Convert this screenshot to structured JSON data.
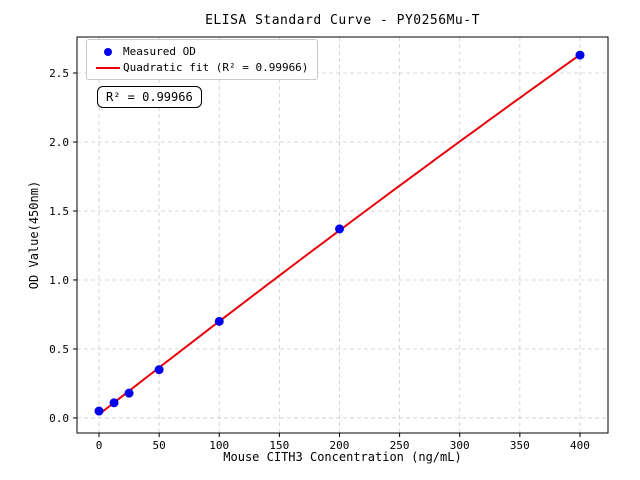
{
  "figure": {
    "background": "#ffffff"
  },
  "chart_data": {
    "type": "scatter",
    "title": "ELISA Standard Curve - PY0256Mu-T",
    "xlabel": "Mouse CITH3 Concentration (ng/mL)",
    "ylabel": "OD Value(450nm)",
    "categories_x": [
      0,
      12.5,
      25,
      50,
      100,
      200,
      400
    ],
    "series": [
      {
        "name": "Measured OD",
        "kind": "scatter",
        "color": "#0000ee",
        "x": [
          0,
          12.5,
          25,
          50,
          100,
          200,
          400
        ],
        "y": [
          0.05,
          0.11,
          0.18,
          0.35,
          0.7,
          1.37,
          2.63
        ]
      },
      {
        "name": "Quadratic fit (R² = 0.99966)",
        "kind": "quadratic-fit-line",
        "color": "#e8000b",
        "fit_source": "Measured OD",
        "x_range": [
          0,
          400
        ]
      }
    ],
    "r_squared": 0.99966,
    "annotation": {
      "text": "R² = 0.99966"
    },
    "xticks": [
      0,
      50,
      100,
      150,
      200,
      250,
      300,
      350,
      400
    ],
    "yticks": [
      0.0,
      0.5,
      1.0,
      1.5,
      2.0,
      2.5
    ],
    "ytick_labels": [
      "0.0",
      "0.5",
      "1.0",
      "1.5",
      "2.0",
      "2.5"
    ],
    "xlim": [
      -18.3,
      423.3
    ],
    "ylim": [
      -0.109,
      2.761
    ],
    "grid": true,
    "grid_style": "dashed",
    "grid_color": "#cccccc",
    "frame_color": "#000000",
    "legend_position": "upper-left"
  }
}
